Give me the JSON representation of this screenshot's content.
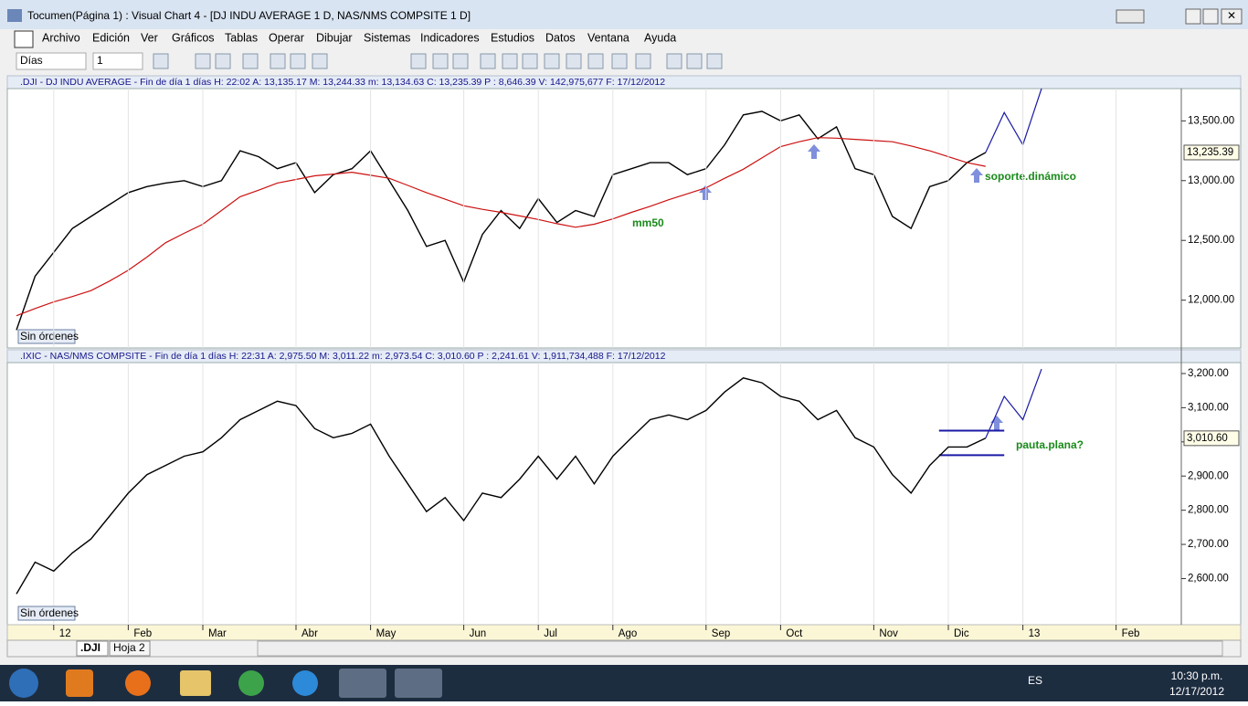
{
  "window": {
    "title": "Tocumen(Página 1) : Visual Chart 4 - [DJ INDU AVERAGE 1 D, NAS/NMS COMPSITE 1 D]"
  },
  "menu": [
    "Archivo",
    "Edición",
    "Ver",
    "Gráficos",
    "Tablas",
    "Operar",
    "Dibujar",
    "Sistemas",
    "Indicadores",
    "Estudios",
    "Datos",
    "Ventana",
    "Ayuda"
  ],
  "toolbar": {
    "period": "Días",
    "compression": "1"
  },
  "tabs": [
    ".DJI",
    "Hoja 2"
  ],
  "taskbar": {
    "language": "ES",
    "time": "10:30 p.m.",
    "date": "12/17/2012"
  },
  "chart_data": [
    {
      "type": "line",
      "title": ".DJI - DJ INDU AVERAGE - Fin de día 1 días H: 22:02 A: 13,135.17 M: 13,244.33 m: 13,134.63 C: 13,235.39 P : 8,646.39 V: 142,975,677 F: 17/12/2012",
      "status": "Sin órdenes",
      "annotations": [
        "mm50",
        "soporte.dinámico"
      ],
      "last_value": {
        "value": 13235.39,
        "label": "13,235.39"
      },
      "ylim": [
        11600,
        13770
      ],
      "yticks": [
        {
          "value": 12000,
          "label": "12,000.00"
        },
        {
          "value": 12500,
          "label": "12,500.00"
        },
        {
          "value": 13000,
          "label": "13,000.00"
        },
        {
          "value": 13500,
          "label": "13,500.00"
        }
      ],
      "series": [
        {
          "color": "#000000",
          "values": [
            11750,
            12200,
            12400,
            12600,
            12700,
            12800,
            12900,
            12950,
            12980,
            13000,
            12950,
            13000,
            13250,
            13200,
            13100,
            13150,
            12900,
            13050,
            13100,
            13250,
            13000,
            12750,
            12450,
            12500,
            12150,
            12550,
            12750,
            12600,
            12850,
            12650,
            12750,
            12700,
            13050,
            13100,
            13150,
            13150,
            13050,
            13100,
            13300,
            13550,
            13580,
            13500,
            13550,
            13350,
            13450,
            13100,
            13050,
            12700,
            12600,
            12950,
            13000,
            13150,
            13235.39,
            null,
            null,
            null,
            null,
            null,
            null,
            null,
            null,
            null,
            null
          ]
        },
        {
          "color": "#cc1111",
          "values": [
            11870,
            11930,
            11985,
            12030,
            12080,
            12160,
            12250,
            12360,
            12480,
            12560,
            12635,
            12750,
            12865,
            12920,
            12980,
            13010,
            13040,
            13055,
            13070,
            13045,
            13020,
            12960,
            12900,
            12845,
            12790,
            12760,
            12735,
            12705,
            12675,
            12640,
            12610,
            12635,
            12680,
            12735,
            12785,
            12840,
            12890,
            12940,
            13020,
            13095,
            13190,
            13285,
            13325,
            13360,
            13355,
            13345,
            13335,
            13325,
            13290,
            13250,
            13200,
            13150,
            13120,
            null,
            null,
            null,
            null,
            null,
            null,
            null,
            null,
            null,
            null
          ]
        },
        {
          "color": "#1a1aa6",
          "values": [
            null,
            null,
            null,
            null,
            null,
            null,
            null,
            null,
            null,
            null,
            null,
            null,
            null,
            null,
            null,
            null,
            null,
            null,
            null,
            null,
            null,
            null,
            null,
            null,
            null,
            null,
            null,
            null,
            null,
            null,
            null,
            null,
            null,
            null,
            null,
            null,
            null,
            null,
            null,
            null,
            null,
            null,
            null,
            null,
            null,
            null,
            null,
            null,
            null,
            null,
            null,
            null,
            13235.39,
            13570,
            13300,
            13770,
            null,
            null,
            null,
            null,
            null,
            null,
            null
          ]
        }
      ]
    },
    {
      "type": "line",
      "title": ".IXIC - NAS/NMS COMPSITE - Fin de día 1 días H: 22:31 A: 2,975.50 M: 3,011.22 m: 2,973.54 C: 3,010.60 P : 2,241.61 V: 1,911,734,488 F: 17/12/2012",
      "status": "Sin órdenes",
      "annotations": [
        "pauta.plana?"
      ],
      "last_value": {
        "value": 3010.6,
        "label": "3,010.60"
      },
      "ylim": [
        2465,
        3232
      ],
      "yticks": [
        {
          "value": 2600,
          "label": "2,600.00"
        },
        {
          "value": 2700,
          "label": "2,700.00"
        },
        {
          "value": 2800,
          "label": "2,800.00"
        },
        {
          "value": 2900,
          "label": "2,900.00"
        },
        {
          "value": 3000,
          "label": "3,000.00"
        },
        {
          "value": 3100,
          "label": "3,100.00"
        },
        {
          "value": 3200,
          "label": "3,200.00"
        }
      ],
      "channel": [
        3033,
        2961
      ],
      "categories": [
        null,
        null,
        "12",
        null,
        null,
        null,
        "Feb",
        null,
        null,
        null,
        "Mar",
        null,
        null,
        null,
        null,
        "Abr",
        null,
        null,
        null,
        "May",
        null,
        null,
        null,
        null,
        "Jun",
        null,
        null,
        null,
        "Jul",
        null,
        null,
        null,
        "Ago",
        null,
        null,
        null,
        null,
        "Sep",
        null,
        null,
        null,
        "Oct",
        null,
        null,
        null,
        null,
        "Nov",
        null,
        null,
        null,
        "Dic",
        null,
        null,
        null,
        "13",
        null,
        null,
        null,
        null,
        "Feb",
        null,
        null,
        null
      ],
      "series": [
        {
          "color": "#000000",
          "values": [
            2555,
            2648,
            2622,
            2675,
            2716,
            2783,
            2850,
            2904,
            2931,
            2958,
            2971,
            3012,
            3065,
            3092,
            3119,
            3106,
            3039,
            3012,
            3025,
            3052,
            2958,
            2877,
            2796,
            2837,
            2770,
            2850,
            2837,
            2891,
            2958,
            2891,
            2958,
            2877,
            2958,
            3012,
            3065,
            3079,
            3065,
            3092,
            3146,
            3187,
            3173,
            3133,
            3119,
            3065,
            3092,
            3012,
            2985,
            2904,
            2850,
            2931,
            2985,
            2985,
            3010.6,
            null,
            null,
            null,
            null,
            null,
            null,
            null,
            null,
            null,
            null
          ]
        },
        {
          "color": "#1a1aa6",
          "values": [
            null,
            null,
            null,
            null,
            null,
            null,
            null,
            null,
            null,
            null,
            null,
            null,
            null,
            null,
            null,
            null,
            null,
            null,
            null,
            null,
            null,
            null,
            null,
            null,
            null,
            null,
            null,
            null,
            null,
            null,
            null,
            null,
            null,
            null,
            null,
            null,
            null,
            null,
            null,
            null,
            null,
            null,
            null,
            null,
            null,
            null,
            null,
            null,
            null,
            null,
            null,
            null,
            3010.6,
            3133,
            3065,
            3213,
            null,
            null,
            null,
            null,
            null,
            null,
            null
          ]
        }
      ]
    }
  ]
}
